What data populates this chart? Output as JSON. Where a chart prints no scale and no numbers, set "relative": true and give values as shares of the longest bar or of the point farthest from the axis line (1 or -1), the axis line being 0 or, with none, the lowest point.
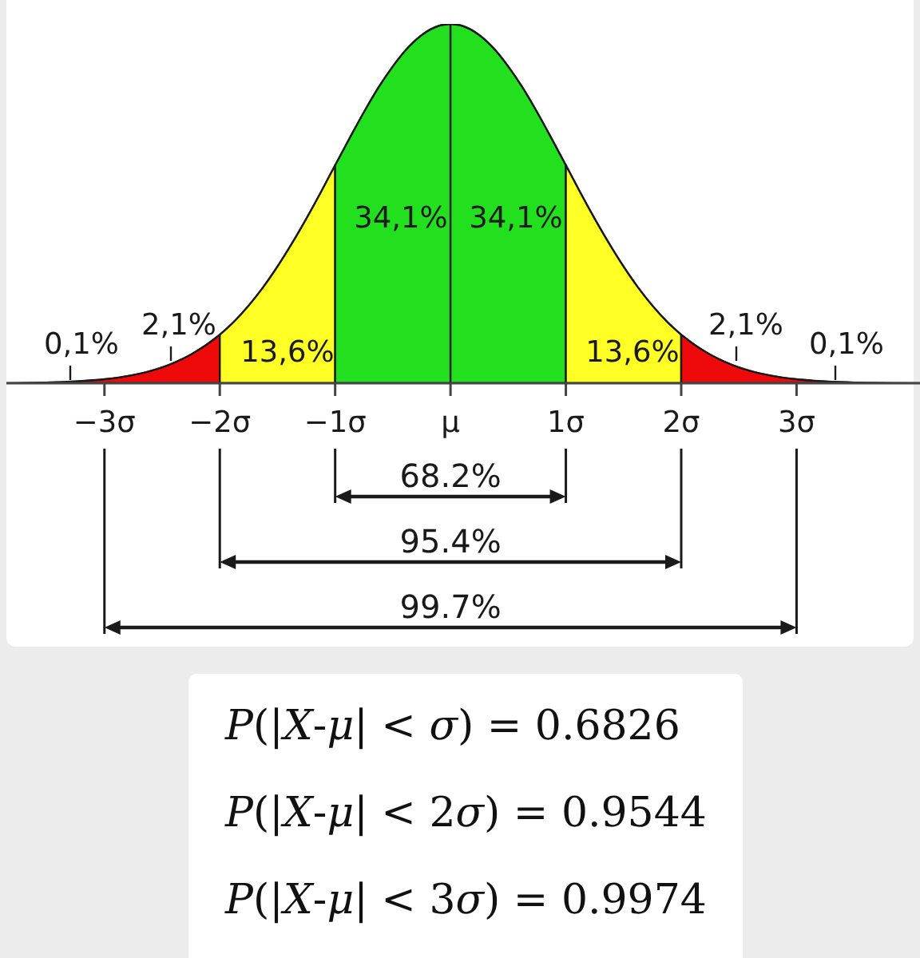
{
  "chart_data": {
    "type": "area",
    "relative": true,
    "xlim": [
      -3.85,
      4.07
    ],
    "xticks": [
      {
        "value": -3,
        "label": "−3σ"
      },
      {
        "value": -2,
        "label": "−2σ"
      },
      {
        "value": -1,
        "label": "−1σ"
      },
      {
        "value": 0,
        "label": "μ"
      },
      {
        "value": 1,
        "label": "1σ"
      },
      {
        "value": 2,
        "label": "2σ"
      },
      {
        "value": 3,
        "label": "3σ"
      }
    ],
    "series": [
      {
        "color": "#ee0a0a",
        "x": [
          -3.85,
          -3.5,
          -3.25,
          -3,
          -2.75,
          -2.625,
          -2.5,
          -2.375,
          -2.25,
          -2.125,
          -2
        ],
        "values": [
          0,
          0.002,
          0.005,
          0.011,
          0.023,
          0.032,
          0.044,
          0.06,
          0.08,
          0.105,
          0.135
        ]
      },
      {
        "color": "#ffff25",
        "x": [
          -2,
          -1.875,
          -1.75,
          -1.625,
          -1.5,
          -1.375,
          -1.25,
          -1.125,
          -1
        ],
        "values": [
          0.135,
          0.172,
          0.216,
          0.267,
          0.325,
          0.389,
          0.458,
          0.531,
          0.607
        ]
      },
      {
        "color": "#22e01e",
        "x": [
          -1,
          -0.875,
          -0.75,
          -0.625,
          -0.5,
          -0.375,
          -0.25,
          -0.1,
          0
        ],
        "values": [
          0.607,
          0.682,
          0.755,
          0.823,
          0.882,
          0.932,
          0.969,
          0.995,
          1
        ]
      },
      {
        "color": "#22e01e",
        "x": [
          0,
          0.1,
          0.25,
          0.375,
          0.5,
          0.625,
          0.75,
          0.875,
          1
        ],
        "values": [
          1,
          0.995,
          0.969,
          0.932,
          0.882,
          0.823,
          0.755,
          0.682,
          0.607
        ]
      },
      {
        "color": "#ffff25",
        "x": [
          1,
          1.125,
          1.25,
          1.375,
          1.5,
          1.625,
          1.75,
          1.875,
          2
        ],
        "values": [
          0.607,
          0.531,
          0.458,
          0.389,
          0.325,
          0.267,
          0.216,
          0.172,
          0.135
        ]
      },
      {
        "color": "#ee0a0a",
        "x": [
          2,
          2.125,
          2.25,
          2.375,
          2.5,
          2.625,
          2.75,
          3,
          3.25,
          3.5,
          4.07
        ],
        "values": [
          0.135,
          0.105,
          0.08,
          0.06,
          0.044,
          0.032,
          0.023,
          0.011,
          0.005,
          0.002,
          0
        ]
      }
    ],
    "annotations": [
      "0,1%",
      "2,1%",
      "13,6%",
      "34,1%",
      "34,1%",
      "13,6%",
      "2,1%",
      "0,1%",
      "68.2%",
      "95.4%",
      "99.7%",
      "P(|X-μ| < σ) = 0.6826",
      "P(|X-μ| < 2σ) = 0.9544",
      "P(|X-μ| < 3σ) = 0.9974"
    ]
  }
}
